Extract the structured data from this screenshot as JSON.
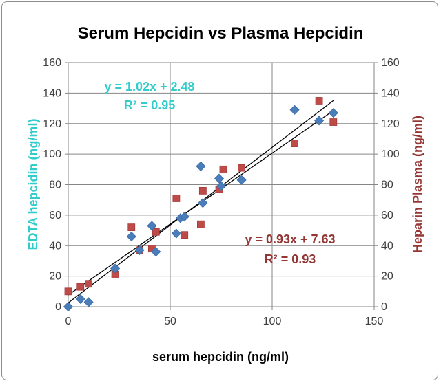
{
  "chart_data": {
    "type": "scatter",
    "title": "Serum Hepcidin vs Plasma Hepcidin",
    "xlabel": "serum hepcidin (ng/ml)",
    "ylabel_left": "EDTA hepcidin (ng/ml)",
    "ylabel_right": "Heparin Plasma (ng/ml)",
    "xlim": [
      0,
      150
    ],
    "ylim": [
      0,
      160
    ],
    "x_ticks": [
      "0",
      "50",
      "100",
      "150"
    ],
    "y_ticks": [
      "0",
      "20",
      "40",
      "60",
      "80",
      "100",
      "120",
      "140",
      "160"
    ],
    "grid": true,
    "colors": {
      "edta": "#4a7ebb",
      "heparin": "#be4b48",
      "edta_text": "#33cccc",
      "heparin_text": "#943634",
      "grid": "#868686"
    },
    "series": [
      {
        "marker": "diamond",
        "x": [
          0,
          6,
          10,
          23,
          31,
          35,
          41,
          43,
          53,
          55,
          57,
          65,
          66,
          74,
          75,
          85,
          111,
          123,
          130
        ],
        "y": [
          0,
          5,
          3,
          25,
          46,
          37,
          53,
          36,
          48,
          58,
          59,
          92,
          68,
          84,
          79,
          83,
          129,
          122,
          127
        ],
        "equation": "y = 1.02x + 2.48",
        "r2": "R² = 0.95",
        "fit": {
          "slope": 1.02,
          "intercept": 2.48,
          "x_range": [
            0,
            130
          ]
        }
      },
      {
        "marker": "square",
        "x": [
          0,
          6,
          10,
          23,
          31,
          35,
          41,
          43,
          53,
          57,
          65,
          66,
          74,
          76,
          85,
          111,
          123,
          130
        ],
        "y": [
          10,
          13,
          15,
          21,
          52,
          37,
          38,
          49,
          71,
          47,
          54,
          76,
          77,
          90,
          91,
          107,
          135,
          121
        ],
        "equation": "y = 0.93x + 7.63",
        "r2": "R² = 0.93",
        "fit": {
          "slope": 0.93,
          "intercept": 7.63,
          "x_range": [
            0,
            130
          ]
        }
      }
    ]
  }
}
